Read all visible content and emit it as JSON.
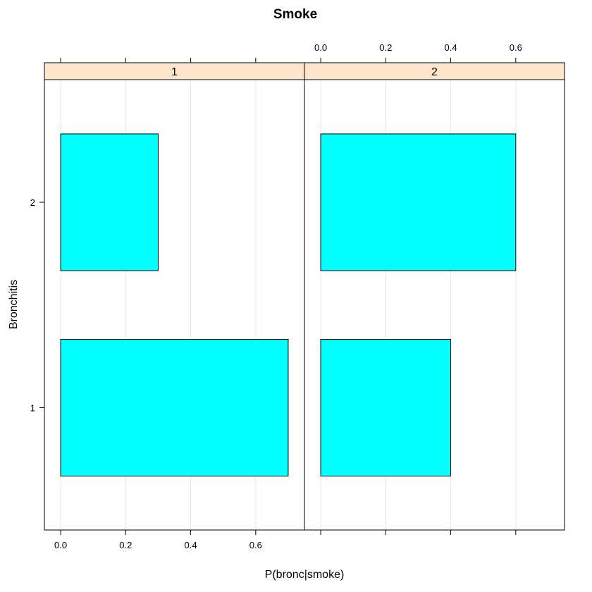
{
  "chart_data": {
    "type": "bar",
    "orientation": "horizontal",
    "title": "Smoke",
    "xlabel": "P(bronc|smoke)",
    "ylabel": "Bronchitis",
    "xlim": [
      -0.05,
      0.75
    ],
    "x_ticks": [
      0.0,
      0.2,
      0.4,
      0.6
    ],
    "x_tick_labels": [
      "0.0",
      "0.2",
      "0.4",
      "0.6"
    ],
    "categories": [
      "1",
      "2"
    ],
    "grid": true,
    "bar_color": "#00ffff",
    "strip_color": "#ffe5cc",
    "panels": [
      {
        "name": "1",
        "values": [
          0.7,
          0.3
        ]
      },
      {
        "name": "2",
        "values": [
          0.4,
          0.6
        ]
      }
    ]
  }
}
